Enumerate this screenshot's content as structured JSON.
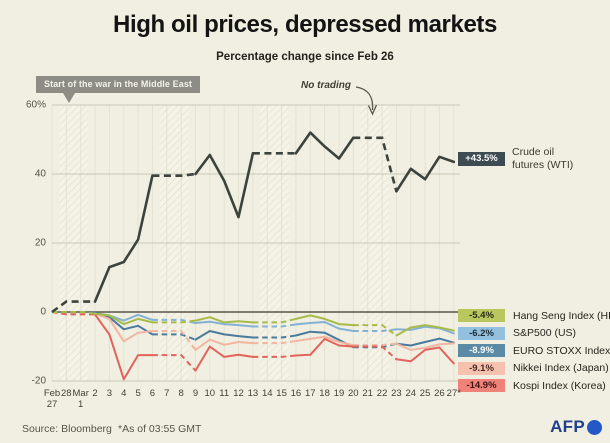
{
  "chart_data": {
    "type": "line",
    "title": "High oil prices, depressed markets",
    "subtitle": "Percentage change since Feb 26",
    "ylabel": "Percentage change",
    "ylim": [
      -20,
      60
    ],
    "grid": true,
    "legend_position": "right",
    "x_labels": [
      "Feb|27",
      "28",
      "Mar|1",
      "2",
      "3",
      "4",
      "5",
      "6",
      "7",
      "8",
      "9",
      "10",
      "11",
      "12",
      "13",
      "14",
      "15",
      "16",
      "17",
      "18",
      "19",
      "20",
      "21",
      "22",
      "23",
      "24",
      "25",
      "26",
      "27*"
    ],
    "yticks": [
      {
        "v": 60,
        "label": "60%"
      },
      {
        "v": 40,
        "label": "40"
      },
      {
        "v": 20,
        "label": "20"
      },
      {
        "v": 0,
        "label": "0"
      },
      {
        "v": -20,
        "label": "-20"
      }
    ],
    "weekend_band_day_indices": [
      [
        1,
        2
      ],
      [
        8,
        9
      ],
      [
        15,
        16
      ],
      [
        22,
        23
      ]
    ],
    "annotations": {
      "war_start": "Start of the war in the Middle East",
      "no_trading": "No trading"
    },
    "series": [
      {
        "name": "S&P500 (US)",
        "color": "#84b1d6",
        "width": 2,
        "end_label": "-6.2%",
        "values": [
          0,
          -0.3,
          -0.3,
          -0.3,
          -1,
          -2.5,
          -0.8,
          -2.3,
          -2.3,
          -2.3,
          -3.2,
          -2.8,
          -3.5,
          -3.8,
          -4.2,
          -4.2,
          -4.2,
          -3.6,
          -3.2,
          -2.9,
          -4.8,
          -5.5,
          -5.5,
          -5.5,
          -5,
          -5.2,
          -4.3,
          -4.7,
          -6.2
        ]
      },
      {
        "name": "EURO STOXX Index",
        "color": "#4a7a9c",
        "width": 2,
        "end_label": "-8.9%",
        "values": [
          0,
          -0.2,
          -0.2,
          -0.2,
          -1.5,
          -5,
          -4,
          -6.5,
          -6.5,
          -6.5,
          -8,
          -5.5,
          -6.5,
          -7,
          -7.4,
          -7.4,
          -7.4,
          -6.8,
          -5.7,
          -6,
          -8.1,
          -10.2,
          -10.2,
          -10.2,
          -9.2,
          -9.7,
          -8.7,
          -7.7,
          -8.9
        ]
      },
      {
        "name": "Nikkei Index (Japan)",
        "color": "#f1b5a1",
        "width": 2,
        "end_label": "-9.1%",
        "values": [
          0,
          -0.5,
          -0.5,
          -0.5,
          -2,
          -8.5,
          -6,
          -5.5,
          -5.5,
          -5.5,
          -11,
          -8,
          -9.5,
          -8.7,
          -9,
          -9,
          -9,
          -8.4,
          -7.8,
          -7.2,
          -8.7,
          -9.6,
          -9.6,
          -9.6,
          -9.2,
          -11,
          -10.4,
          -9.4,
          -9.1
        ]
      },
      {
        "name": "Kospi Index (Korea)",
        "color": "#e2635b",
        "width": 2,
        "end_label": "-14.9%",
        "values": [
          0,
          -0.7,
          -0.7,
          -0.7,
          -6.5,
          -19.5,
          -12.5,
          -12.5,
          -12.5,
          -12.5,
          -17,
          -10,
          -13,
          -12.4,
          -13,
          -13,
          -13,
          -12.6,
          -12.4,
          -7.8,
          -9.7,
          -10,
          -10,
          -10,
          -13.7,
          -14.3,
          -11,
          -10.3,
          -14.9
        ]
      },
      {
        "name": "Hang Seng Index (HK)",
        "color": "#a7bb4a",
        "width": 2,
        "end_label": "-5.4%",
        "values": [
          0,
          0,
          0,
          -0.5,
          -1,
          -3.5,
          -2,
          -3,
          -3,
          -3,
          -2.5,
          -1.5,
          -3,
          -2.7,
          -3,
          -3,
          -3,
          -2,
          -1,
          -2,
          -3.5,
          -3.8,
          -3.8,
          -3.8,
          -6.8,
          -4.5,
          -3.8,
          -4.5,
          -5.4
        ]
      },
      {
        "name": "Crude oil futures (WTI)",
        "color": "#3c433d",
        "width": 2.6,
        "end_label": "+43.5%",
        "values": [
          0,
          3,
          3,
          3,
          13,
          14.5,
          21,
          39.5,
          39.5,
          39.5,
          40,
          45.5,
          38,
          27.5,
          46,
          46,
          46,
          46,
          52,
          48,
          44.5,
          50.5,
          50.5,
          50.5,
          35,
          41.5,
          38.5,
          45,
          43.5
        ]
      }
    ]
  },
  "legend": {
    "crude": {
      "value": "+43.5%",
      "line1": "Crude oil",
      "line2": "futures (WTI)",
      "color": "#3e4b53",
      "text_color": "#ffffff"
    },
    "rows": [
      {
        "value": "-5.4%",
        "label": "Hang Seng Index (HK)",
        "color": "#b9c85e",
        "text_color": "#2a2a1a"
      },
      {
        "value": "-6.2%",
        "label": "S&P500 (US)",
        "color": "#93c0de",
        "text_color": "#1d2b36"
      },
      {
        "value": "-8.9%",
        "label": "EURO STOXX Index",
        "color": "#5b8aa6",
        "text_color": "#ffffff"
      },
      {
        "value": "-9.1%",
        "label": "Nikkei Index (Japan)",
        "color": "#f6c1af",
        "text_color": "#4a2a20"
      },
      {
        "value": "-14.9%",
        "label": "Kospi Index (Korea)",
        "color": "#f0827a",
        "text_color": "#3a1512"
      }
    ]
  },
  "footer": {
    "source": "Source: Bloomberg",
    "asof": "*As of 03:55 GMT",
    "logo": "AFP"
  }
}
